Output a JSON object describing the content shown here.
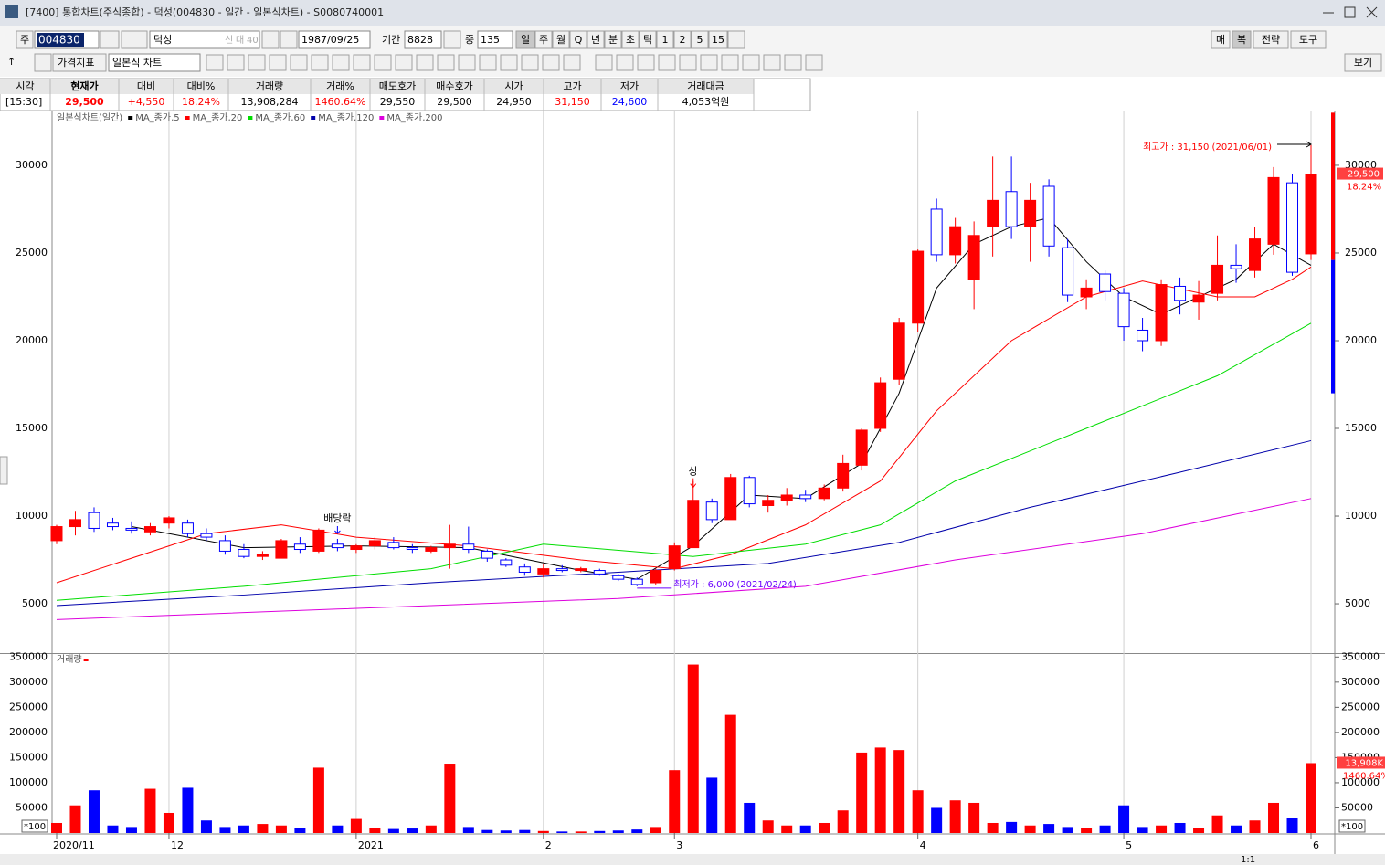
{
  "window": {
    "title": "[7400] 통합차트(주식종합) - 덕성(004830 - 일간 - 일본식차트) - S0080740001"
  },
  "toolbar": {
    "market": "주",
    "code": "004830",
    "name": "덕성",
    "name_tags": [
      "신",
      "대",
      "40"
    ],
    "date": "1987/09/25",
    "period_label": "기간",
    "period": "8828",
    "count_label": "중",
    "count": "135",
    "intervals": [
      "일",
      "주",
      "월",
      "Q",
      "년",
      "분",
      "초",
      "틱",
      "1",
      "2",
      "5",
      "15"
    ],
    "right_buttons": [
      "매",
      "복",
      "전략",
      "도구"
    ],
    "indicator": "가격지표",
    "chart_kind": "일본식 차트",
    "view": "보기"
  },
  "quote": {
    "headers": [
      "시각",
      "현재가",
      "대비",
      "대비%",
      "거래량",
      "거래%",
      "매도호가",
      "매수호가",
      "시가",
      "고가",
      "저가",
      "거래대금"
    ],
    "values": [
      "[15:30]",
      "29,500",
      "+4,550",
      "18.24%",
      "13,908,284",
      "1460.64%",
      "29,550",
      "29,500",
      "24,950",
      "31,150",
      "24,600",
      "4,053억원"
    ],
    "colors": [
      "#000000",
      "#ff0000",
      "#ff0000",
      "#ff0000",
      "#000000",
      "#ff0000",
      "#000000",
      "#000000",
      "#000000",
      "#ff0000",
      "#0000ff",
      "#000000"
    ]
  },
  "chart_data": {
    "type": "candlestick",
    "legend_title": "일본식차트(일간)",
    "up_color": "#ff0000",
    "down_color": "#0000ff",
    "categories": [
      "2020/11",
      null,
      null,
      null,
      null,
      null,
      "12",
      null,
      null,
      null,
      null,
      null,
      null,
      null,
      null,
      null,
      "2021",
      null,
      null,
      null,
      null,
      null,
      null,
      null,
      null,
      null,
      "2",
      null,
      null,
      null,
      null,
      null,
      null,
      "3",
      null,
      null,
      null,
      null,
      null,
      null,
      null,
      null,
      null,
      null,
      null,
      null,
      "4",
      null,
      null,
      null,
      null,
      null,
      null,
      null,
      null,
      null,
      null,
      "5",
      null,
      null,
      null,
      null,
      null,
      null,
      null,
      null,
      null,
      "6"
    ],
    "ohlc": [
      [
        8600,
        9500,
        8400,
        9400
      ],
      [
        9400,
        10300,
        8900,
        9800
      ],
      [
        10200,
        10500,
        9100,
        9300
      ],
      [
        9600,
        9900,
        9200,
        9400
      ],
      [
        9300,
        9700,
        9000,
        9200
      ],
      [
        9100,
        9600,
        8900,
        9400
      ],
      [
        9600,
        10000,
        9300,
        9900
      ],
      [
        9600,
        9800,
        8800,
        9000
      ],
      [
        9000,
        9300,
        8600,
        8800
      ],
      [
        8600,
        8900,
        7800,
        8000
      ],
      [
        8100,
        8400,
        7600,
        7700
      ],
      [
        7700,
        8000,
        7500,
        7800
      ],
      [
        7600,
        8700,
        7600,
        8600
      ],
      [
        8400,
        8800,
        7900,
        8100
      ],
      [
        8000,
        9300,
        7900,
        9200
      ],
      [
        8400,
        8700,
        8000,
        8200
      ],
      [
        8100,
        8400,
        7900,
        8300
      ],
      [
        8300,
        8800,
        8100,
        8600
      ],
      [
        8500,
        8800,
        8100,
        8200
      ],
      [
        8200,
        8400,
        7900,
        8100
      ],
      [
        8000,
        8300,
        7900,
        8200
      ],
      [
        8200,
        9500,
        7000,
        8400
      ],
      [
        8400,
        9400,
        7900,
        8100
      ],
      [
        8000,
        8100,
        7400,
        7600
      ],
      [
        7500,
        7600,
        7100,
        7200
      ],
      [
        7100,
        7300,
        6600,
        6800
      ],
      [
        6700,
        7300,
        6500,
        7000
      ],
      [
        7000,
        7200,
        6800,
        6900
      ],
      [
        6900,
        7100,
        6800,
        7000
      ],
      [
        6900,
        7000,
        6600,
        6700
      ],
      [
        6600,
        6700,
        6300,
        6400
      ],
      [
        6400,
        6500,
        6000,
        6100
      ],
      [
        6200,
        7000,
        6100,
        6900
      ],
      [
        7000,
        8500,
        6900,
        8300
      ],
      [
        8200,
        12000,
        8200,
        10900
      ],
      [
        10800,
        11000,
        9600,
        9800
      ],
      [
        9800,
        12400,
        9800,
        12200
      ],
      [
        12200,
        12300,
        10500,
        10700
      ],
      [
        10600,
        11200,
        10200,
        10900
      ],
      [
        10900,
        11600,
        10600,
        11200
      ],
      [
        11200,
        11500,
        10800,
        11000
      ],
      [
        11000,
        11800,
        10900,
        11600
      ],
      [
        11600,
        13500,
        11400,
        13000
      ],
      [
        12900,
        15000,
        12600,
        14900
      ],
      [
        15000,
        17900,
        14800,
        17600
      ],
      [
        17800,
        21300,
        17500,
        21000
      ],
      [
        21000,
        25200,
        20500,
        25100
      ],
      [
        27500,
        28100,
        24500,
        24900
      ],
      [
        24900,
        27000,
        24400,
        26500
      ],
      [
        23500,
        26800,
        21800,
        26000
      ],
      [
        26500,
        30500,
        24800,
        28000
      ],
      [
        28500,
        30500,
        25800,
        26500
      ],
      [
        26500,
        29000,
        24500,
        28000
      ],
      [
        28800,
        29200,
        24800,
        25400
      ],
      [
        25300,
        25800,
        22200,
        22600
      ],
      [
        22500,
        23500,
        21800,
        23000
      ],
      [
        23800,
        24000,
        22300,
        22800
      ],
      [
        22700,
        23000,
        20000,
        20800
      ],
      [
        20600,
        21300,
        19400,
        20000
      ],
      [
        20000,
        23500,
        19700,
        23200
      ],
      [
        23100,
        23600,
        21500,
        22300
      ],
      [
        22200,
        23400,
        21200,
        22600
      ],
      [
        22700,
        26000,
        22300,
        24300
      ],
      [
        24300,
        25500,
        23300,
        24100
      ],
      [
        24000,
        26500,
        23600,
        25800
      ],
      [
        25500,
        29900,
        24900,
        29300
      ],
      [
        29000,
        29500,
        23700,
        23900
      ],
      [
        24950,
        31150,
        24600,
        29500
      ]
    ],
    "ylim": [
      2190,
      33070
    ],
    "yticks": [
      5000,
      10000,
      15000,
      20000,
      25000,
      30000
    ],
    "ma": [
      {
        "name": "MA_종가,5",
        "color": "#000000",
        "x": [
          4,
          10,
          16,
          22,
          28,
          31,
          34,
          37,
          40,
          43,
          45,
          47,
          49,
          51,
          53,
          55,
          57,
          59,
          61,
          63,
          65,
          67
        ],
        "values": [
          9400,
          8200,
          8300,
          8200,
          6900,
          6400,
          8300,
          11200,
          11000,
          13000,
          17000,
          23000,
          25500,
          26500,
          27000,
          24500,
          22500,
          21500,
          22500,
          23500,
          25500,
          24300
        ]
      },
      {
        "name": "MA_종가,20",
        "color": "#ff0000",
        "x": [
          0,
          8,
          12,
          16,
          22,
          28,
          33,
          36,
          40,
          44,
          47,
          51,
          55,
          58,
          62,
          64,
          66,
          67
        ],
        "values": [
          6200,
          9000,
          9500,
          8800,
          8300,
          7500,
          7000,
          7800,
          9500,
          12000,
          16000,
          20000,
          22500,
          23400,
          22500,
          22500,
          23500,
          24200
        ]
      },
      {
        "name": "MA_종가,60",
        "color": "#00dd00",
        "x": [
          0,
          10,
          20,
          26,
          34,
          40,
          44,
          48,
          55,
          62,
          67
        ],
        "values": [
          5200,
          6000,
          7000,
          8400,
          7700,
          8400,
          9500,
          12000,
          15000,
          18000,
          21000
        ]
      },
      {
        "name": "MA_종가,120",
        "color": "#0000aa",
        "x": [
          0,
          10,
          20,
          30,
          38,
          45,
          52,
          60,
          67
        ],
        "values": [
          4900,
          5500,
          6200,
          6800,
          7300,
          8500,
          10500,
          12500,
          14300
        ]
      },
      {
        "name": "MA_종가,200",
        "color": "#dd00dd",
        "x": [
          0,
          15,
          30,
          40,
          48,
          58,
          67
        ],
        "values": [
          4100,
          4700,
          5300,
          6000,
          7500,
          9000,
          11000
        ]
      }
    ],
    "volume": {
      "name": "거래량",
      "values": [
        20000,
        55000,
        85000,
        15000,
        12000,
        88000,
        40000,
        90000,
        25000,
        12000,
        15000,
        18000,
        15000,
        10000,
        130000,
        15000,
        28000,
        10000,
        8000,
        9000,
        15000,
        138000,
        12000,
        6000,
        5000,
        6000,
        4000,
        3000,
        3000,
        4000,
        5000,
        7000,
        12000,
        125000,
        335000,
        110000,
        235000,
        60000,
        25000,
        15000,
        15000,
        20000,
        45000,
        160000,
        170000,
        165000,
        85000,
        50000,
        65000,
        60000,
        20000,
        22000,
        15000,
        18000,
        12000,
        10000,
        15000,
        55000,
        12000,
        15000,
        20000,
        10000,
        35000,
        15000,
        25000,
        60000,
        30000,
        139000
      ],
      "ylim": [
        0,
        356000
      ],
      "yticks": [
        50000,
        100000,
        150000,
        200000,
        250000,
        300000,
        350000
      ],
      "unit_label": "*100"
    },
    "annotations": [
      {
        "text": "최고가 : 31,150 (2021/06/01)",
        "color": "#ff0000"
      },
      {
        "text": "최저가 : 6,000 (2021/02/24)",
        "color": "#6a00ff"
      },
      {
        "text": "상",
        "color": "#000000"
      },
      {
        "text": "배당락",
        "color": "#000000"
      }
    ],
    "price_tag": {
      "price": "29,500",
      "change": "18.24%"
    },
    "volume_tag": {
      "volume": "13,908K",
      "ratio": "1460.64%"
    }
  },
  "footer": {
    "zoom": "1:1"
  }
}
